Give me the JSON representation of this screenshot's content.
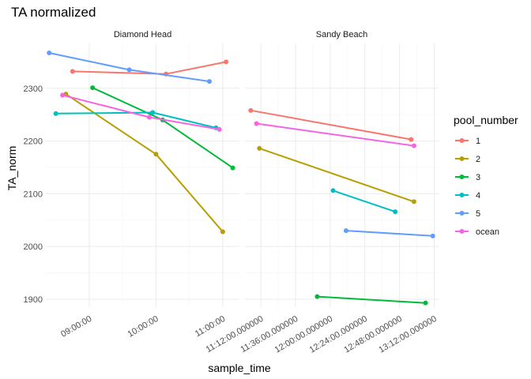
{
  "chart_data": {
    "type": "line",
    "title": "TA normalized",
    "xlabel": "sample_time",
    "ylabel": "TA_norm",
    "ylim": [
      1885,
      2385
    ],
    "y_ticks": [
      1900,
      2000,
      2100,
      2200,
      2300
    ],
    "y_tick_labels": [
      "1900",
      "2000",
      "2100",
      "2200",
      "2300"
    ],
    "legend": {
      "title": "pool_number",
      "position": "right",
      "entries": [
        {
          "label": "1",
          "color": "#F8766D"
        },
        {
          "label": "2",
          "color": "#B79F00"
        },
        {
          "label": "3",
          "color": "#00BA38"
        },
        {
          "label": "4",
          "color": "#00BFC4"
        },
        {
          "label": "5",
          "color": "#619CFF"
        },
        {
          "label": "ocean",
          "color": "#F564E3"
        }
      ]
    },
    "panels": [
      {
        "name": "Diamond Head",
        "x_unit": "hours",
        "xlim": [
          8.35,
          11.25
        ],
        "x_ticks": [
          9,
          10,
          11
        ],
        "x_tick_labels": [
          "09:00:00",
          "10:00:00",
          "11:00:00"
        ],
        "series": [
          {
            "name": "1",
            "points": [
              [
                8.75,
                2332
              ],
              [
                10.15,
                2327
              ],
              [
                11.05,
                2350
              ]
            ]
          },
          {
            "name": "2",
            "points": [
              [
                8.65,
                2289
              ],
              [
                10.0,
                2175
              ],
              [
                11.0,
                2028
              ]
            ]
          },
          {
            "name": "3",
            "points": [
              [
                9.05,
                2301
              ],
              [
                10.1,
                2240
              ],
              [
                11.15,
                2149
              ]
            ]
          },
          {
            "name": "4",
            "points": [
              [
                8.5,
                2252
              ],
              [
                9.95,
                2254
              ],
              [
                10.9,
                2225
              ]
            ]
          },
          {
            "name": "5",
            "points": [
              [
                8.4,
                2367
              ],
              [
                9.6,
                2335
              ],
              [
                10.8,
                2313
              ]
            ]
          },
          {
            "name": "ocean",
            "points": [
              [
                8.6,
                2287
              ],
              [
                9.9,
                2245
              ],
              [
                10.95,
                2222
              ]
            ]
          }
        ]
      },
      {
        "name": "Sandy Beach",
        "x_unit": "minutes",
        "xlim": [
          661,
          795
        ],
        "x_ticks": [
          672,
          696,
          720,
          744,
          768,
          792
        ],
        "x_tick_labels": [
          "11:12:00.000000",
          "11:36:00.000000",
          "12:00:00.000000",
          "12:24:00.000000",
          "12:48:00.000000",
          "13:12:00.000000"
        ],
        "series": [
          {
            "name": "1",
            "points": [
              [
                665,
                2258
              ],
              [
                776,
                2203
              ]
            ]
          },
          {
            "name": "2",
            "points": [
              [
                671,
                2186
              ],
              [
                778,
                2085
              ]
            ]
          },
          {
            "name": "3",
            "points": [
              [
                711,
                1905
              ],
              [
                786,
                1893
              ]
            ]
          },
          {
            "name": "4",
            "points": [
              [
                722,
                2106
              ],
              [
                765,
                2066
              ]
            ]
          },
          {
            "name": "5",
            "points": [
              [
                731,
                2030
              ],
              [
                791,
                2020
              ]
            ]
          },
          {
            "name": "ocean",
            "points": [
              [
                669,
                2233
              ],
              [
                778,
                2191
              ]
            ]
          }
        ]
      }
    ]
  }
}
